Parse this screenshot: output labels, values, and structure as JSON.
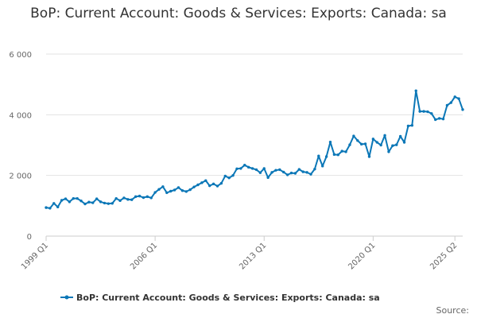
{
  "chart_data": {
    "type": "line",
    "title": "BoP: Current Account: Goods & Services: Exports: Canada: sa",
    "xlabel": "",
    "ylabel": "",
    "ylim": [
      0,
      6000
    ],
    "y_ticks": [
      0,
      2000,
      4000,
      6000
    ],
    "y_tick_labels": [
      "0",
      "2 000",
      "4 000",
      "6 000"
    ],
    "x_tick_labels": [
      "1999 Q1",
      "2006 Q1",
      "2013 Q1",
      "2020 Q1",
      "2025 Q2"
    ],
    "x_tick_indices": [
      0,
      28,
      56,
      84,
      105
    ],
    "grid": true,
    "legend_position": "bottom",
    "series": [
      {
        "name": "BoP: Current Account: Goods & Services: Exports: Canada: sa",
        "color": "#0b77b7",
        "start": "1999 Q1",
        "frequency": "quarterly",
        "values": [
          940,
          920,
          1080,
          960,
          1180,
          1230,
          1130,
          1240,
          1240,
          1160,
          1060,
          1120,
          1100,
          1230,
          1130,
          1090,
          1070,
          1080,
          1240,
          1170,
          1260,
          1210,
          1200,
          1300,
          1320,
          1270,
          1300,
          1260,
          1440,
          1540,
          1630,
          1430,
          1480,
          1520,
          1600,
          1500,
          1470,
          1530,
          1620,
          1690,
          1760,
          1830,
          1660,
          1720,
          1650,
          1740,
          1980,
          1920,
          2000,
          2220,
          2230,
          2340,
          2270,
          2230,
          2190,
          2090,
          2230,
          1930,
          2100,
          2170,
          2190,
          2110,
          2020,
          2080,
          2070,
          2200,
          2120,
          2100,
          2040,
          2210,
          2640,
          2310,
          2620,
          3100,
          2690,
          2680,
          2800,
          2780,
          3010,
          3300,
          3150,
          3030,
          3040,
          2620,
          3200,
          3090,
          3000,
          3320,
          2780,
          2980,
          3010,
          3290,
          3090,
          3630,
          3650,
          4790,
          4110,
          4110,
          4100,
          4040,
          3840,
          3880,
          3860,
          4310,
          4400,
          4590,
          4530,
          4170
        ]
      }
    ]
  },
  "legend": {
    "label": "BoP: Current Account: Goods & Services: Exports: Canada: sa"
  },
  "source": {
    "label": "Source:"
  }
}
